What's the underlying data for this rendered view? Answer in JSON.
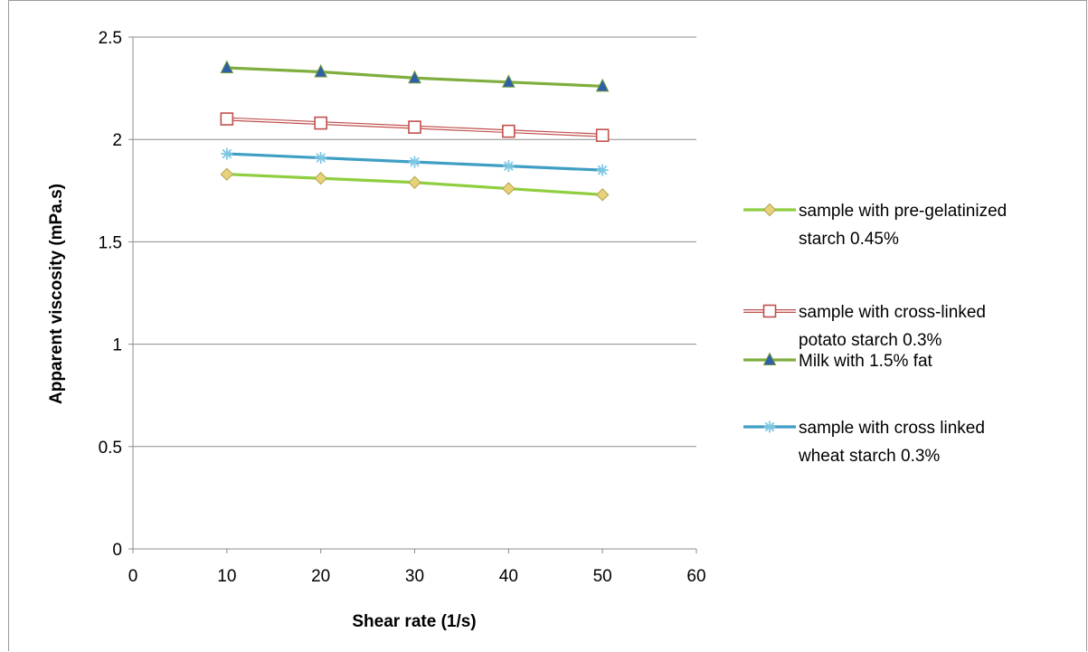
{
  "chart_data": {
    "type": "line",
    "title": "",
    "xlabel": "Shear rate (1/s)",
    "ylabel": "Apparent viscosity (mPa.s)",
    "xlim": [
      0,
      60
    ],
    "ylim": [
      0,
      2.5
    ],
    "xticks": [
      0,
      10,
      20,
      30,
      40,
      50,
      60
    ],
    "xtick_labels": [
      "0",
      "10",
      "20",
      "30",
      "40",
      "50",
      "60"
    ],
    "yticks": [
      0,
      0.5,
      1,
      1.5,
      2,
      2.5
    ],
    "ytick_labels": [
      "0",
      "0.5",
      "1",
      "1.5",
      "2",
      "2.5"
    ],
    "grid": "horizontal",
    "legend_position": "right",
    "x": [
      10,
      20,
      30,
      40,
      50
    ],
    "series": [
      {
        "name": "sample with pre-gelatinized starch 0.45%",
        "legend_lines": [
          "sample with pre-gelatinized",
          "starch 0.45%"
        ],
        "values": [
          1.83,
          1.81,
          1.79,
          1.76,
          1.73
        ],
        "color": "#8fce3f",
        "marker": "diamond",
        "marker_color": "#e6d27a"
      },
      {
        "name": "sample with cross-linked potato starch 0.3%",
        "legend_lines": [
          "sample with cross-linked",
          "potato starch 0.3%"
        ],
        "values": [
          2.1,
          2.08,
          2.06,
          2.04,
          2.02
        ],
        "color": "#c0504d",
        "marker": "square",
        "marker_color": "#ffffff"
      },
      {
        "name": "Milk with 1.5% fat",
        "legend_lines": [
          "Milk with 1.5% fat"
        ],
        "values": [
          2.35,
          2.33,
          2.3,
          2.28,
          2.26
        ],
        "color": "#7fae3e",
        "marker": "triangle",
        "marker_color": "#2f5fa8"
      },
      {
        "name": "sample with cross linked wheat starch 0.3%",
        "legend_lines": [
          "sample with cross linked",
          "wheat starch 0.3%"
        ],
        "values": [
          1.93,
          1.91,
          1.89,
          1.87,
          1.85
        ],
        "color": "#3f9ec4",
        "marker": "star",
        "marker_color": "#7ec8e3"
      }
    ]
  }
}
